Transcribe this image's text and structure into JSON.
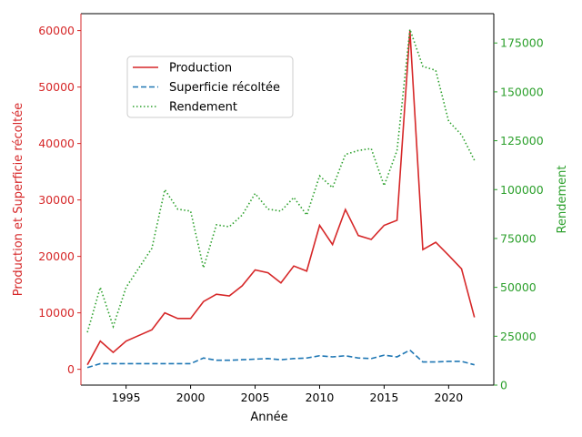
{
  "chart_data": {
    "type": "line",
    "x_label": "Année",
    "y_left_label": "Production et Superficie récoltée",
    "y_right_label": "Rendement",
    "x_range": [
      1991.5,
      2023.5
    ],
    "y_left_range": [
      -2800,
      63000
    ],
    "y_right_range": [
      0,
      190000
    ],
    "x_ticks": [
      1995,
      2000,
      2005,
      2010,
      2015,
      2020
    ],
    "y_left_ticks": [
      0,
      10000,
      20000,
      30000,
      40000,
      50000,
      60000
    ],
    "y_right_ticks": [
      0,
      25000,
      50000,
      75000,
      100000,
      125000,
      150000,
      175000
    ],
    "grid": false,
    "legend_position": "upper-left",
    "x": [
      1992,
      1993,
      1994,
      1995,
      1996,
      1997,
      1998,
      1999,
      2000,
      2001,
      2002,
      2003,
      2004,
      2005,
      2006,
      2007,
      2008,
      2009,
      2010,
      2011,
      2012,
      2013,
      2014,
      2015,
      2016,
      2017,
      2018,
      2019,
      2020,
      2021,
      2022
    ],
    "series": [
      {
        "name": "Production",
        "axis": "left",
        "color": "#d62728",
        "style": "solid",
        "values": [
          800,
          5000,
          3000,
          5000,
          6000,
          7000,
          10000,
          9000,
          9000,
          12000,
          13300,
          13000,
          14800,
          17600,
          17100,
          15300,
          18300,
          17400,
          25500,
          22100,
          28300,
          23700,
          23000,
          25500,
          26400,
          60000,
          21200,
          22500,
          20200,
          17800,
          9200
        ]
      },
      {
        "name": "Superficie récoltée",
        "axis": "left",
        "color": "#1f77b4",
        "style": "dashed",
        "values": [
          300,
          1000,
          1000,
          1000,
          1000,
          1000,
          1000,
          1000,
          1000,
          2000,
          1600,
          1600,
          1700,
          1800,
          1900,
          1700,
          1900,
          2000,
          2400,
          2200,
          2400,
          2000,
          1900,
          2500,
          2200,
          3400,
          1300,
          1300,
          1400,
          1400,
          800
        ]
      },
      {
        "name": "Rendement",
        "axis": "right",
        "color": "#2ca02c",
        "style": "dotted",
        "values": [
          27000,
          50000,
          30000,
          50000,
          60000,
          70000,
          100000,
          90000,
          89000,
          60000,
          82000,
          81000,
          87000,
          98000,
          90000,
          89000,
          96000,
          87000,
          107000,
          101000,
          118000,
          120000,
          121000,
          102000,
          120000,
          182000,
          163000,
          161000,
          135000,
          128000,
          115000
        ]
      }
    ]
  }
}
